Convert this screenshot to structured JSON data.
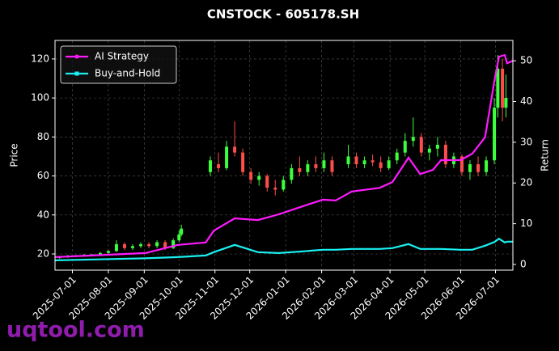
{
  "chart_data": {
    "type": "candlestick",
    "title": "CNSTOCK - 605178.SH",
    "ylabel": "Price",
    "y2label": "Return",
    "watermark": "uqtool.com",
    "grid": true,
    "legend": "upper left",
    "up_color": "#3dff3d",
    "down_color": "#ff4d4d",
    "xlim": [
      "2025-06-16",
      "2026-07-16"
    ],
    "xticks": [
      "2025-07-01",
      "2025-08-01",
      "2025-09-01",
      "2025-10-01",
      "2025-11-01",
      "2025-12-01",
      "2026-01-01",
      "2026-02-01",
      "2026-03-01",
      "2026-04-01",
      "2026-05-01",
      "2026-06-01",
      "2026-07-01"
    ],
    "ylim": [
      11.7,
      129.5
    ],
    "yticks": [
      20,
      40,
      60,
      80,
      100,
      120
    ],
    "y2lim": [
      -1.4,
      55
    ],
    "y2ticks": [
      0,
      10,
      20,
      30,
      40,
      50
    ],
    "x": [
      "2025-06-20",
      "2025-06-27",
      "2025-07-04",
      "2025-07-11",
      "2025-07-18",
      "2025-07-25",
      "2025-08-01",
      "2025-08-08",
      "2025-08-15",
      "2025-08-22",
      "2025-08-29",
      "2025-09-05",
      "2025-09-12",
      "2025-09-19",
      "2025-09-26",
      "2025-10-01",
      "2025-10-03",
      "2025-10-28",
      "2025-11-04",
      "2025-11-11",
      "2025-11-18",
      "2025-11-25",
      "2025-12-02",
      "2025-12-09",
      "2025-12-16",
      "2025-12-23",
      "2025-12-30",
      "2026-01-06",
      "2026-01-13",
      "2026-01-20",
      "2026-01-27",
      "2026-02-03",
      "2026-02-10",
      "2026-02-24",
      "2026-03-03",
      "2026-03-10",
      "2026-03-17",
      "2026-03-24",
      "2026-03-31",
      "2026-04-07",
      "2026-04-14",
      "2026-04-21",
      "2026-04-28",
      "2026-05-05",
      "2026-05-12",
      "2026-05-19",
      "2026-05-26",
      "2026-06-02",
      "2026-06-09",
      "2026-06-16",
      "2026-06-23",
      "2026-06-30",
      "2026-07-03",
      "2026-07-07",
      "2026-07-10"
    ],
    "open": [
      18,
      18.5,
      19,
      19,
      19.5,
      19.8,
      20.5,
      21.5,
      25,
      23,
      24,
      25,
      24,
      26,
      23,
      27,
      30,
      62,
      66,
      64,
      75,
      72,
      62,
      58,
      60,
      54,
      53,
      58,
      64,
      62,
      66,
      64,
      68,
      66,
      70,
      66,
      68,
      67,
      64,
      68,
      72,
      78,
      80,
      72,
      74,
      76,
      66,
      70,
      62,
      66,
      62,
      68,
      95,
      115,
      95
    ],
    "high": [
      19,
      19.5,
      19.5,
      20,
      20,
      21,
      22,
      27,
      26,
      25,
      26,
      26,
      27,
      27,
      28,
      32,
      35,
      70,
      72,
      78,
      88,
      74,
      64,
      62,
      61,
      58,
      60,
      66,
      70,
      68,
      70,
      72,
      70,
      76,
      72,
      70,
      71,
      70,
      70,
      74,
      82,
      90,
      82,
      76,
      80,
      78,
      72,
      71,
      68,
      70,
      70,
      100,
      122,
      120,
      112
    ],
    "low": [
      17.5,
      18,
      18.5,
      18.5,
      19,
      19.5,
      20,
      21,
      22,
      22,
      23,
      23,
      23,
      22,
      22.5,
      26,
      29,
      60,
      62,
      63,
      70,
      60,
      56,
      55,
      52,
      50,
      52,
      56,
      60,
      60,
      62,
      62,
      60,
      64,
      64,
      64,
      65,
      62,
      63,
      66,
      70,
      75,
      70,
      68,
      70,
      64,
      64,
      60,
      58,
      60,
      60,
      66,
      90,
      88,
      90
    ],
    "close": [
      18.5,
      19,
      19,
      19.5,
      19.8,
      20.5,
      21.5,
      25,
      23,
      24,
      25,
      24,
      26,
      23,
      27,
      30,
      33,
      68,
      64,
      75,
      72,
      62,
      58,
      60,
      54,
      53,
      58,
      64,
      62,
      66,
      64,
      68,
      62,
      70,
      66,
      68,
      67,
      64,
      68,
      72,
      78,
      80,
      72,
      74,
      76,
      66,
      70,
      62,
      66,
      62,
      68,
      95,
      115,
      95,
      100
    ],
    "series": [
      {
        "name": "AI Strategy",
        "color": "#ff1aff",
        "axis": "y2",
        "x": [
          "2025-06-16",
          "2025-09-02",
          "2025-09-30",
          "2025-10-24",
          "2025-10-31",
          "2025-11-18",
          "2025-12-08",
          "2025-12-26",
          "2026-01-16",
          "2026-02-02",
          "2026-02-13",
          "2026-02-27",
          "2026-03-23",
          "2026-04-03",
          "2026-04-17",
          "2026-04-27",
          "2026-05-08",
          "2026-05-15",
          "2026-06-01",
          "2026-06-11",
          "2026-06-22",
          "2026-06-30",
          "2026-07-04",
          "2026-07-09",
          "2026-07-11",
          "2026-07-16"
        ],
        "values": [
          1.8,
          2.8,
          4.8,
          5.4,
          8.3,
          11.3,
          10.9,
          12.3,
          14.3,
          15.9,
          15.7,
          17.9,
          18.8,
          20.2,
          26.2,
          22.2,
          23.2,
          25.6,
          25.6,
          27.2,
          31.2,
          45,
          51,
          51.4,
          49.4,
          50
        ]
      },
      {
        "name": "Buy-and-Hold",
        "color": "#1af0f0",
        "axis": "y2",
        "x": [
          "2025-06-16",
          "2025-09-02",
          "2025-09-30",
          "2025-10-24",
          "2025-10-31",
          "2025-11-18",
          "2025-12-08",
          "2025-12-26",
          "2026-01-16",
          "2026-02-02",
          "2026-02-13",
          "2026-02-27",
          "2026-03-23",
          "2026-04-03",
          "2026-04-17",
          "2026-04-27",
          "2026-05-08",
          "2026-05-15",
          "2026-06-01",
          "2026-06-11",
          "2026-06-22",
          "2026-06-30",
          "2026-07-04",
          "2026-07-09",
          "2026-07-11",
          "2026-07-16"
        ],
        "values": [
          1,
          1.5,
          1.8,
          2.2,
          3,
          4.8,
          3,
          2.8,
          3.2,
          3.6,
          3.6,
          3.8,
          3.8,
          4,
          5,
          3.8,
          3.8,
          3.8,
          3.6,
          3.6,
          4.6,
          5.5,
          6.3,
          5.4,
          5.6,
          5.6
        ]
      }
    ]
  }
}
